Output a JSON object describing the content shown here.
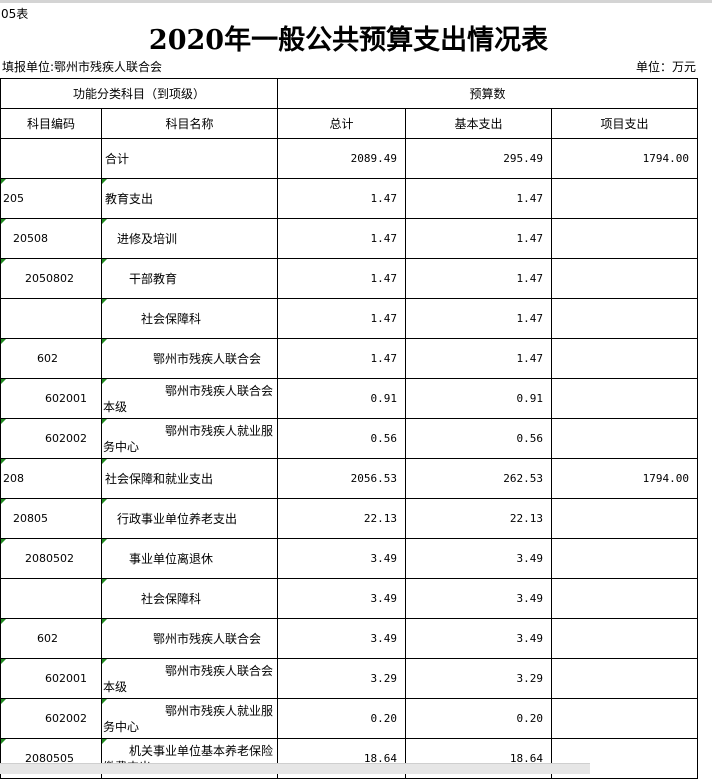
{
  "sheet_label": "05表",
  "title": "2020年一般公共预算支出情况表",
  "reporting_unit": "填报单位:鄂州市残疾人联合会",
  "unit": "单位：万元",
  "header": {
    "group_left": "功能分类科目（到项级）",
    "group_right": "预算数",
    "columns": [
      "科目编码",
      "科目名称",
      "总计",
      "基本支出",
      "项目支出"
    ]
  },
  "rows": [
    {
      "code": "",
      "name": "合计",
      "level": 0,
      "total": "2089.49",
      "basic": "295.49",
      "project": "1794.00"
    },
    {
      "code": "205",
      "name": "教育支出",
      "level": 0,
      "total": "1.47",
      "basic": "1.47",
      "project": ""
    },
    {
      "code": "20508",
      "name": "进修及培训",
      "level": 1,
      "total": "1.47",
      "basic": "1.47",
      "project": ""
    },
    {
      "code": "2050802",
      "name": "干部教育",
      "level": 2,
      "total": "1.47",
      "basic": "1.47",
      "project": ""
    },
    {
      "code": "",
      "name": "社会保障科",
      "level": 3,
      "total": "1.47",
      "basic": "1.47",
      "project": ""
    },
    {
      "code": "602",
      "name": "鄂州市残疾人联合会",
      "level": 4,
      "total": "1.47",
      "basic": "1.47",
      "project": ""
    },
    {
      "code": "602001",
      "name": "鄂州市残疾人联合会本级",
      "level": 5,
      "total": "0.91",
      "basic": "0.91",
      "project": ""
    },
    {
      "code": "602002",
      "name": "鄂州市残疾人就业服务中心",
      "level": 5,
      "total": "0.56",
      "basic": "0.56",
      "project": ""
    },
    {
      "code": "208",
      "name": "社会保障和就业支出",
      "level": 0,
      "total": "2056.53",
      "basic": "262.53",
      "project": "1794.00"
    },
    {
      "code": "20805",
      "name": "行政事业单位养老支出",
      "level": 1,
      "total": "22.13",
      "basic": "22.13",
      "project": ""
    },
    {
      "code": "2080502",
      "name": "事业单位离退休",
      "level": 2,
      "total": "3.49",
      "basic": "3.49",
      "project": ""
    },
    {
      "code": "",
      "name": "社会保障科",
      "level": 3,
      "total": "3.49",
      "basic": "3.49",
      "project": ""
    },
    {
      "code": "602",
      "name": "鄂州市残疾人联合会",
      "level": 4,
      "total": "3.49",
      "basic": "3.49",
      "project": ""
    },
    {
      "code": "602001",
      "name": "鄂州市残疾人联合会本级",
      "level": 5,
      "total": "3.29",
      "basic": "3.29",
      "project": ""
    },
    {
      "code": "602002",
      "name": "鄂州市残疾人就业服务中心",
      "level": 5,
      "total": "0.20",
      "basic": "0.20",
      "project": ""
    },
    {
      "code": "2080505",
      "name": "机关事业单位基本养老保险缴费支出",
      "level": 2,
      "total": "18.64",
      "basic": "18.64",
      "project": ""
    }
  ]
}
